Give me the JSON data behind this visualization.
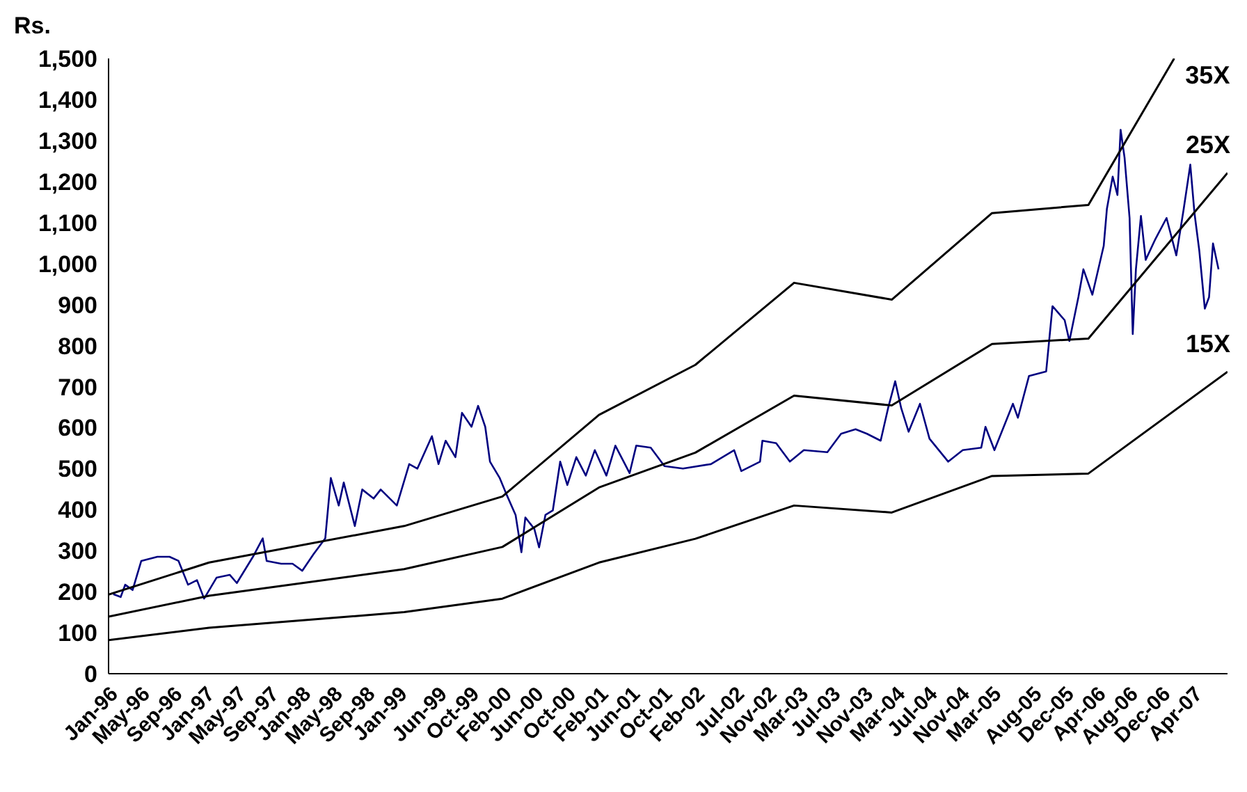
{
  "chart_data": {
    "type": "line",
    "ylabel": "Rs.",
    "legend": false,
    "grid": false,
    "marker": "none",
    "xlim": [
      "1996-01-01",
      "2007-08-10"
    ],
    "xticks": [
      {
        "value": "1996-01-01",
        "label": "Jan-96"
      },
      {
        "value": "1996-05-01",
        "label": "May-96"
      },
      {
        "value": "1996-09-01",
        "label": "Sep-96"
      },
      {
        "value": "1997-01-01",
        "label": "Jan-97"
      },
      {
        "value": "1997-05-01",
        "label": "May-97"
      },
      {
        "value": "1997-09-01",
        "label": "Sep-97"
      },
      {
        "value": "1998-01-01",
        "label": "Jan-98"
      },
      {
        "value": "1998-05-01",
        "label": "May-98"
      },
      {
        "value": "1998-09-01",
        "label": "Sep-98"
      },
      {
        "value": "1999-01-01",
        "label": "Jan-99"
      },
      {
        "value": "1999-06-01",
        "label": "Jun-99"
      },
      {
        "value": "1999-10-01",
        "label": "Oct-99"
      },
      {
        "value": "2000-02-01",
        "label": "Feb-00"
      },
      {
        "value": "2000-06-01",
        "label": "Jun-00"
      },
      {
        "value": "2000-10-01",
        "label": "Oct-00"
      },
      {
        "value": "2001-02-01",
        "label": "Feb-01"
      },
      {
        "value": "2001-06-01",
        "label": "Jun-01"
      },
      {
        "value": "2001-10-01",
        "label": "Oct-01"
      },
      {
        "value": "2002-02-01",
        "label": "Feb-02"
      },
      {
        "value": "2002-07-01",
        "label": "Jul-02"
      },
      {
        "value": "2002-11-01",
        "label": "Nov-02"
      },
      {
        "value": "2003-03-01",
        "label": "Mar-03"
      },
      {
        "value": "2003-07-01",
        "label": "Jul-03"
      },
      {
        "value": "2003-11-01",
        "label": "Nov-03"
      },
      {
        "value": "2004-03-01",
        "label": "Mar-04"
      },
      {
        "value": "2004-07-01",
        "label": "Jul-04"
      },
      {
        "value": "2004-11-01",
        "label": "Nov-04"
      },
      {
        "value": "2005-03-01",
        "label": "Mar-05"
      },
      {
        "value": "2005-08-01",
        "label": "Aug-05"
      },
      {
        "value": "2005-12-01",
        "label": "Dec-05"
      },
      {
        "value": "2006-04-01",
        "label": "Apr-06"
      },
      {
        "value": "2006-08-01",
        "label": "Aug-06"
      },
      {
        "value": "2006-12-01",
        "label": "Dec-06"
      },
      {
        "value": "2007-04-01",
        "label": "Apr-07"
      }
    ],
    "ylim": [
      0,
      1500
    ],
    "yticks": [
      0,
      100,
      200,
      300,
      400,
      500,
      600,
      700,
      800,
      900,
      {
        "value": 1000,
        "label": "1,000"
      },
      {
        "value": 1100,
        "label": "1,100"
      },
      {
        "value": 1200,
        "label": "1,200"
      },
      {
        "value": 1300,
        "label": "1,300"
      },
      {
        "value": 1400,
        "label": "1,400"
      },
      {
        "value": 1500,
        "label": "1,500"
      }
    ],
    "series": [
      {
        "color": "#000080",
        "x": [
          "1996-01-19",
          "1996-02-16",
          "1996-03-04",
          "1996-04-01",
          "1996-05-04",
          "1996-07-04",
          "1996-08-19",
          "1996-09-22",
          "1996-10-28",
          "1996-12-01",
          "1996-12-28",
          "1997-02-13",
          "1997-04-04",
          "1997-05-01",
          "1997-07-01",
          "1997-08-07",
          "1997-08-22",
          "1997-10-16",
          "1997-11-28",
          "1998-01-04",
          "1998-02-16",
          "1998-04-01",
          "1998-04-22",
          "1998-05-22",
          "1998-06-10",
          "1998-07-22",
          "1998-08-19",
          "1998-10-01",
          "1998-10-28",
          "1998-12-28",
          "1999-02-13",
          "1999-03-16",
          "1999-05-10",
          "1999-06-04",
          "1999-07-01",
          "1999-08-07",
          "1999-09-01",
          "1999-10-07",
          "1999-11-01",
          "1999-11-28",
          "1999-12-16",
          "2000-01-22",
          "2000-02-16",
          "2000-03-22",
          "2000-04-13",
          "2000-04-28",
          "2000-06-01",
          "2000-06-19",
          "2000-07-13",
          "2000-08-10",
          "2000-09-07",
          "2000-10-04",
          "2000-11-07",
          "2000-12-13",
          "2001-01-16",
          "2001-03-01",
          "2001-04-04",
          "2001-05-28",
          "2001-06-22",
          "2001-08-16",
          "2001-10-07",
          "2001-12-16",
          "2002-04-01",
          "2002-06-28",
          "2002-07-25",
          "2002-10-04",
          "2002-10-13",
          "2002-12-04",
          "2003-01-25",
          "2003-03-19",
          "2003-06-16",
          "2003-08-07",
          "2003-10-01",
          "2003-11-13",
          "2004-01-04",
          "2004-02-01",
          "2004-02-28",
          "2004-03-22",
          "2004-04-19",
          "2004-06-01",
          "2004-07-07",
          "2004-09-16",
          "2004-11-10",
          "2005-01-19",
          "2005-02-04",
          "2005-03-10",
          "2005-05-19",
          "2005-06-07",
          "2005-07-19",
          "2005-09-22",
          "2005-10-16",
          "2005-12-01",
          "2005-12-19",
          "2006-01-22",
          "2006-02-10",
          "2006-03-16",
          "2006-04-28",
          "2006-05-10",
          "2006-06-01",
          "2006-06-19",
          "2006-07-01",
          "2006-07-16",
          "2006-08-04",
          "2006-08-16",
          "2006-08-28",
          "2006-09-16",
          "2006-10-04",
          "2006-11-10",
          "2006-12-22",
          "2007-01-28",
          "2007-02-25",
          "2007-03-22",
          "2007-04-07",
          "2007-04-25",
          "2007-05-16",
          "2007-06-01",
          "2007-06-16",
          "2007-07-07"
        ],
        "values": [
          194,
          187,
          217,
          204,
          275,
          285,
          285,
          275,
          217,
          228,
          183,
          234,
          241,
          221,
          285,
          330,
          275,
          268,
          268,
          251,
          292,
          330,
          477,
          410,
          466,
          360,
          449,
          427,
          449,
          410,
          511,
          500,
          579,
          511,
          568,
          528,
          636,
          602,
          653,
          602,
          517,
          477,
          438,
          387,
          296,
          381,
          353,
          308,
          387,
          398,
          517,
          460,
          528,
          483,
          545,
          483,
          556,
          489,
          556,
          551,
          506,
          500,
          511,
          545,
          494,
          517,
          568,
          562,
          517,
          545,
          540,
          585,
          596,
          585,
          568,
          647,
          713,
          647,
          590,
          658,
          573,
          517,
          545,
          551,
          602,
          545,
          658,
          624,
          726,
          737,
          896,
          862,
          811,
          918,
          986,
          924,
          1043,
          1133,
          1212,
          1167,
          1326,
          1258,
          1111,
          828,
          986,
          1116,
          1009,
          1060,
          1111,
          1020,
          1133,
          1241,
          1122,
          1032,
          890,
          918,
          1049,
          986
        ]
      },
      {
        "name": "35X",
        "color": "#000000",
        "x": [
          "1996-01-01",
          "1997-01-16",
          "1999-01-25",
          "2000-02-01",
          "2001-02-01",
          "2002-02-01",
          "2003-02-10",
          "2004-02-15",
          "2005-03-01",
          "2006-03-01",
          "2007-01-20"
        ],
        "values": [
          193,
          271,
          360,
          432,
          631,
          753,
          953,
          912,
          1123,
          1143,
          1500
        ]
      },
      {
        "name": "25X",
        "color": "#000000",
        "x": [
          "1996-01-01",
          "1997-01-16",
          "1999-01-25",
          "2000-02-01",
          "2001-02-01",
          "2002-02-01",
          "2003-02-10",
          "2004-02-15",
          "2005-03-01",
          "2006-03-01",
          "2007-08-10"
        ],
        "values": [
          139,
          190,
          255,
          309,
          454,
          539,
          678,
          654,
          804,
          817,
          1221
        ]
      },
      {
        "name": "15X",
        "color": "#000000",
        "x": [
          "1996-01-01",
          "1997-01-16",
          "1999-01-25",
          "2000-02-01",
          "2001-02-01",
          "2002-02-01",
          "2003-02-10",
          "2004-02-15",
          "2005-03-01",
          "2006-03-01",
          "2007-08-10"
        ],
        "values": [
          82,
          112,
          150,
          183,
          271,
          329,
          410,
          393,
          482,
          488,
          736
        ]
      }
    ]
  }
}
